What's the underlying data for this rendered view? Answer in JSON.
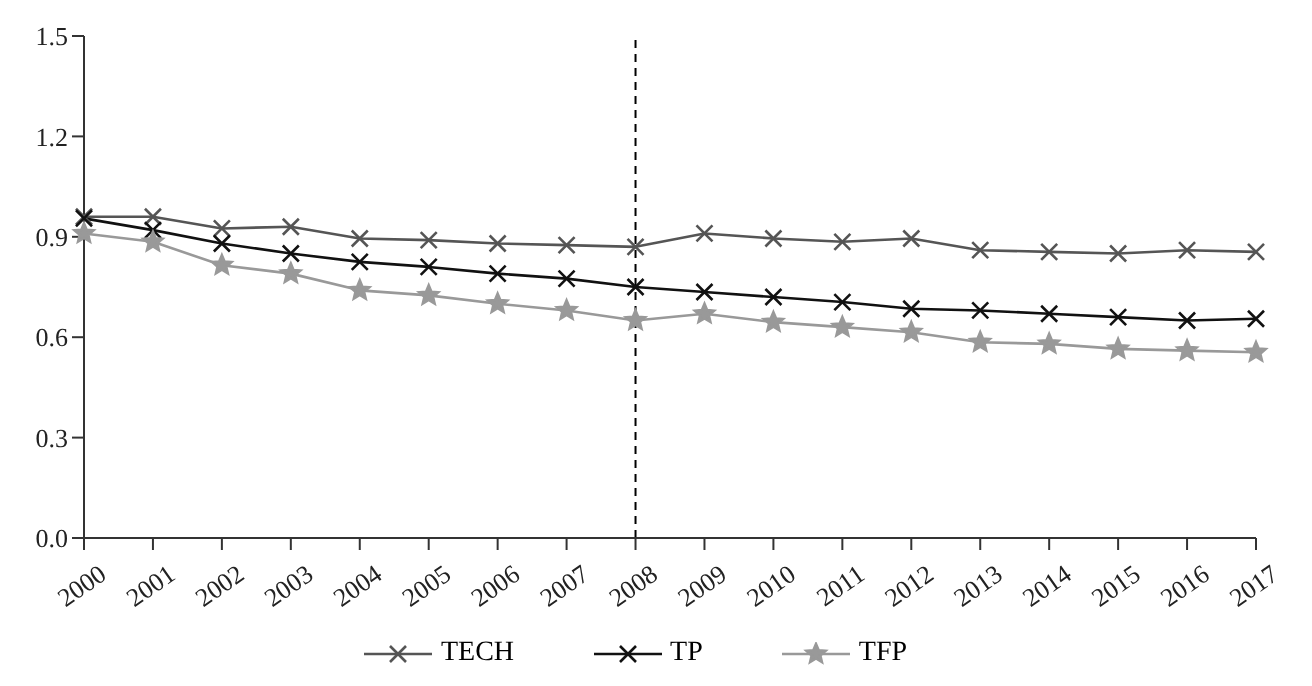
{
  "chart_data": {
    "type": "line",
    "categories": [
      "2000",
      "2001",
      "2002",
      "2003",
      "2004",
      "2005",
      "2006",
      "2007",
      "2008",
      "2009",
      "2010",
      "2011",
      "2012",
      "2013",
      "2014",
      "2015",
      "2016",
      "2017"
    ],
    "ylim": [
      0,
      1.5
    ],
    "yticks": [
      {
        "value": 0,
        "label": "0.0"
      },
      {
        "value": 0.3,
        "label": "0.3"
      },
      {
        "value": 0.6,
        "label": "0.6"
      },
      {
        "value": 0.9,
        "label": "0.9"
      },
      {
        "value": 1.2,
        "label": "1.2"
      },
      {
        "value": 1.5,
        "label": "1.5"
      }
    ],
    "grid": false,
    "legend": "bottom",
    "line_style": "solid",
    "ref_lines": [
      {
        "axis": "x",
        "value": "2008",
        "line_style": "dashed",
        "color": "#000000"
      }
    ],
    "series": [
      {
        "name": "TECH",
        "color": "#555555",
        "marker": "cross",
        "values": [
          0.96,
          0.96,
          0.925,
          0.93,
          0.895,
          0.89,
          0.88,
          0.875,
          0.87,
          0.91,
          0.895,
          0.885,
          0.895,
          0.86,
          0.855,
          0.85,
          0.86,
          0.855
        ]
      },
      {
        "name": "TP",
        "color": "#111111",
        "marker": "cross",
        "values": [
          0.955,
          0.92,
          0.88,
          0.85,
          0.825,
          0.81,
          0.79,
          0.775,
          0.75,
          0.735,
          0.72,
          0.705,
          0.685,
          0.68,
          0.67,
          0.66,
          0.65,
          0.655
        ]
      },
      {
        "name": "TFP",
        "color": "#999999",
        "marker": "star",
        "values": [
          0.91,
          0.885,
          0.815,
          0.79,
          0.74,
          0.725,
          0.7,
          0.68,
          0.65,
          0.67,
          0.645,
          0.63,
          0.615,
          0.585,
          0.58,
          0.565,
          0.56,
          0.555
        ]
      }
    ]
  }
}
